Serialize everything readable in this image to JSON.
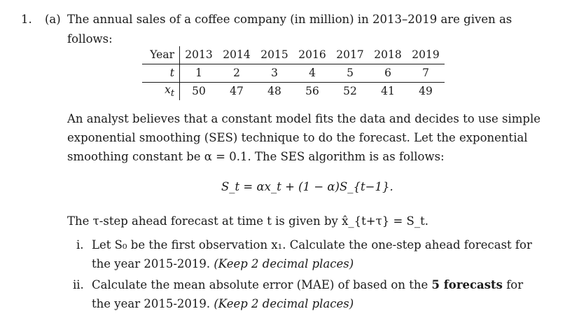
{
  "question": {
    "number": "1.",
    "part": "(a)",
    "intro_line1": "The annual sales of a coffee company (in million) in 2013–2019 are given as",
    "intro_line2": "follows:"
  },
  "table": {
    "row_labels": [
      "Year",
      "t",
      "x"
    ],
    "row_label_subscript": "t",
    "years": [
      "2013",
      "2014",
      "2015",
      "2016",
      "2017",
      "2018",
      "2019"
    ],
    "t_values": [
      "1",
      "2",
      "3",
      "4",
      "5",
      "6",
      "7"
    ],
    "x_values": [
      "50",
      "47",
      "48",
      "56",
      "52",
      "41",
      "49"
    ]
  },
  "paragraph": [
    "An analyst believes that a constant model fits the data and decides to use simple",
    "exponential smoothing (SES) technique to do the forecast. Let the exponential",
    "smoothing constant be α = 0.1. The SES algorithm is as follows:"
  ],
  "formula": "S_t = αx_t + (1 − α)S_{t−1}.",
  "forecast_sentence": "The τ-step ahead forecast at time t is given by x̂_{t+τ} = S_t.",
  "items": [
    {
      "num": "i.",
      "line1": "Let S₀ be the first observation x₁. Calculate the one-step ahead forecast for",
      "line2_a": "the year 2015-2019.",
      "line2_b": "(Keep 2 decimal places)"
    },
    {
      "num": "ii.",
      "line1_a": "Calculate the mean absolute error (MAE) of based on the",
      "line1_bold": "5 forecasts",
      "line1_b": "for",
      "line2_a": "the year 2015-2019.",
      "line2_b": "(Keep 2 decimal places)"
    }
  ]
}
